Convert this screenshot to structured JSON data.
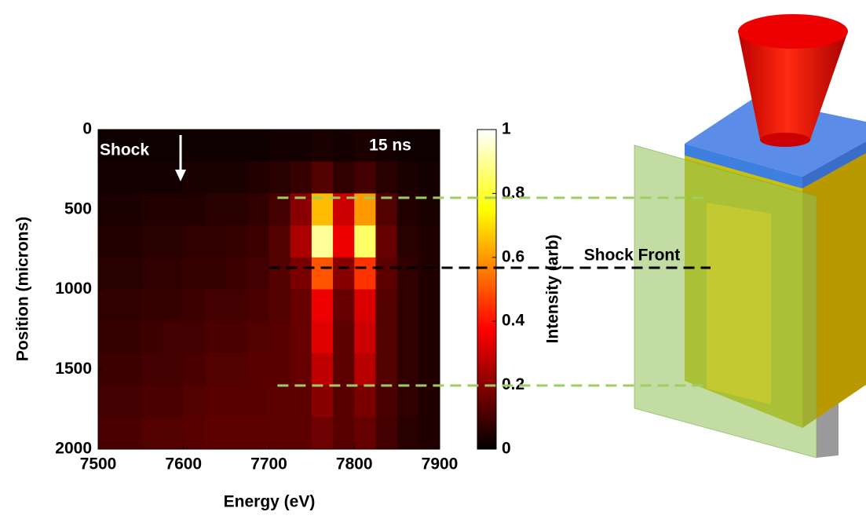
{
  "chart_data": {
    "type": "heatmap",
    "colormap": "hot",
    "xlabel": "Energy (eV)",
    "ylabel": "Position (microns)",
    "colorbar_label": "Intensity (arb)",
    "xlim": [
      7500,
      7900
    ],
    "xticks": [
      7500,
      7600,
      7700,
      7800,
      7900
    ],
    "ylim": [
      2000,
      0
    ],
    "yticks": [
      0,
      500,
      1000,
      1500,
      2000
    ],
    "zlim": [
      0,
      1
    ],
    "zticks": [
      0,
      0.2,
      0.4,
      0.6,
      0.8,
      1
    ],
    "x_bins": [
      7500,
      7525,
      7550,
      7575,
      7600,
      7625,
      7650,
      7675,
      7700,
      7725,
      7750,
      7775,
      7800,
      7825,
      7850,
      7875,
      7900
    ],
    "y_bins": [
      0,
      200,
      400,
      600,
      800,
      1000,
      1200,
      1400,
      1600,
      1800,
      2000
    ],
    "z": [
      [
        0.02,
        0.02,
        0.02,
        0.02,
        0.02,
        0.02,
        0.02,
        0.02,
        0.03,
        0.03,
        0.04,
        0.03,
        0.04,
        0.03,
        0.02,
        0.02
      ],
      [
        0.03,
        0.03,
        0.03,
        0.03,
        0.04,
        0.04,
        0.04,
        0.05,
        0.06,
        0.08,
        0.12,
        0.07,
        0.1,
        0.06,
        0.04,
        0.03
      ],
      [
        0.04,
        0.04,
        0.05,
        0.05,
        0.05,
        0.06,
        0.06,
        0.07,
        0.1,
        0.2,
        0.65,
        0.3,
        0.6,
        0.12,
        0.05,
        0.04
      ],
      [
        0.05,
        0.05,
        0.06,
        0.06,
        0.07,
        0.07,
        0.08,
        0.09,
        0.12,
        0.25,
        0.9,
        0.35,
        0.85,
        0.15,
        0.06,
        0.05
      ],
      [
        0.06,
        0.06,
        0.07,
        0.07,
        0.08,
        0.08,
        0.09,
        0.1,
        0.12,
        0.18,
        0.5,
        0.2,
        0.45,
        0.14,
        0.07,
        0.05
      ],
      [
        0.07,
        0.07,
        0.08,
        0.08,
        0.09,
        0.1,
        0.1,
        0.11,
        0.12,
        0.15,
        0.35,
        0.15,
        0.32,
        0.12,
        0.07,
        0.05
      ],
      [
        0.08,
        0.08,
        0.09,
        0.1,
        0.1,
        0.11,
        0.11,
        0.12,
        0.13,
        0.15,
        0.33,
        0.14,
        0.3,
        0.12,
        0.07,
        0.05
      ],
      [
        0.09,
        0.09,
        0.1,
        0.1,
        0.11,
        0.12,
        0.12,
        0.13,
        0.13,
        0.15,
        0.28,
        0.14,
        0.27,
        0.12,
        0.07,
        0.05
      ],
      [
        0.1,
        0.1,
        0.11,
        0.11,
        0.12,
        0.13,
        0.13,
        0.13,
        0.14,
        0.14,
        0.2,
        0.13,
        0.18,
        0.11,
        0.07,
        0.05
      ],
      [
        0.11,
        0.11,
        0.12,
        0.12,
        0.13,
        0.14,
        0.14,
        0.14,
        0.14,
        0.14,
        0.16,
        0.13,
        0.15,
        0.1,
        0.06,
        0.05
      ]
    ],
    "annotations": {
      "shock": "Shock",
      "time": "15 ns",
      "shock_front": "Shock Front"
    },
    "guides": [
      {
        "y": 427,
        "x_start": 7710,
        "color": "#9ccf5f"
      },
      {
        "y": 865,
        "x_start": 7700,
        "color": "#000000"
      },
      {
        "y": 1602,
        "x_start": 7710,
        "color": "#9ccf5f"
      }
    ]
  }
}
